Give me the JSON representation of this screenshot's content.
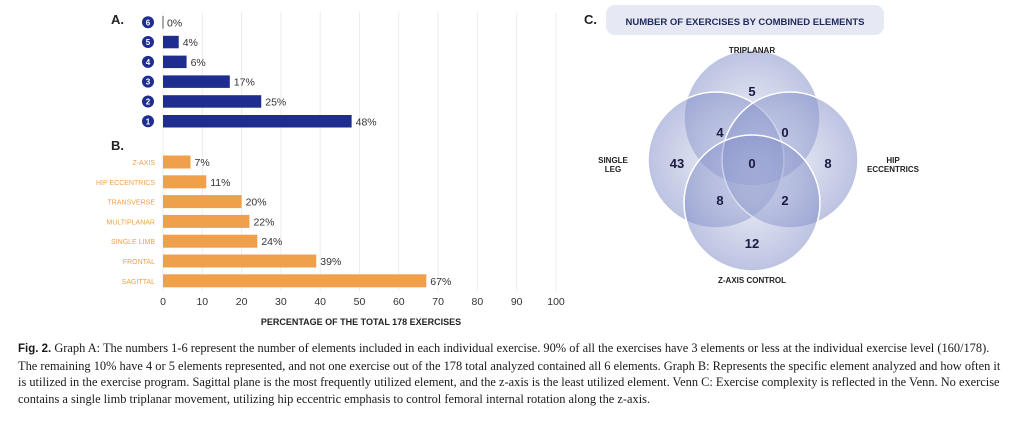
{
  "figure": {
    "labels": {
      "a": "A.",
      "b": "B.",
      "c": "C."
    },
    "xlabel": "PERCENTAGE OF THE TOTAL 178 EXERCISES"
  },
  "chart_data": [
    {
      "id": "A",
      "type": "bar",
      "orientation": "horizontal",
      "categories": [
        "6",
        "5",
        "4",
        "3",
        "2",
        "1"
      ],
      "values": [
        0,
        4,
        6,
        17,
        25,
        48
      ],
      "value_labels": [
        "0%",
        "4%",
        "6%",
        "17%",
        "25%",
        "48%"
      ],
      "color": "#1e2d8f",
      "xlim": [
        0,
        100
      ]
    },
    {
      "id": "B",
      "type": "bar",
      "orientation": "horizontal",
      "categories": [
        "Z-AXIS",
        "HIP ECCENTRICS",
        "TRANSVERSE",
        "MULTIPLANAR",
        "SINGLE LIMB",
        "FRONTAL",
        "SAGITTAL"
      ],
      "values": [
        7,
        11,
        20,
        22,
        24,
        39,
        67
      ],
      "value_labels": [
        "7%",
        "11%",
        "20%",
        "22%",
        "24%",
        "39%",
        "67%"
      ],
      "color": "#f0a04b",
      "xlim": [
        0,
        100
      ],
      "xticks": [
        0,
        10,
        20,
        30,
        40,
        50,
        60,
        70,
        80,
        90,
        100
      ],
      "xlabel": "PERCENTAGE OF THE TOTAL 178 EXERCISES"
    },
    {
      "id": "C",
      "type": "venn",
      "title": "NUMBER OF EXERCISES BY COMBINED ELEMENTS",
      "sets": [
        "TRIPLANAR",
        "SINGLE LEG",
        "HIP ECCENTRICS",
        "Z-AXIS CONTROL"
      ],
      "regions": [
        {
          "sets": [
            "TRIPLANAR"
          ],
          "value": 5
        },
        {
          "sets": [
            "SINGLE LEG"
          ],
          "value": 43
        },
        {
          "sets": [
            "HIP ECCENTRICS"
          ],
          "value": 8
        },
        {
          "sets": [
            "Z-AXIS CONTROL"
          ],
          "value": 12
        },
        {
          "sets": [
            "TRIPLANAR",
            "SINGLE LEG"
          ],
          "value": 4
        },
        {
          "sets": [
            "TRIPLANAR",
            "HIP ECCENTRICS"
          ],
          "value": 0
        },
        {
          "sets": [
            "SINGLE LEG",
            "Z-AXIS CONTROL"
          ],
          "value": 8
        },
        {
          "sets": [
            "HIP ECCENTRICS",
            "Z-AXIS CONTROL"
          ],
          "value": 2
        },
        {
          "sets": [
            "TRIPLANAR",
            "SINGLE LEG",
            "HIP ECCENTRICS",
            "Z-AXIS CONTROL"
          ],
          "value": 0
        }
      ],
      "color": "#5d6db5"
    }
  ],
  "caption": {
    "label": "Fig. 2.",
    "text": "Graph A: The numbers 1-6 represent the number of elements included in each individual exercise. 90% of all the exercises have 3 elements or less at the individual exercise level (160/178). The remaining 10% have 4 or 5 elements represented, and not one exercise out of the 178 total analyzed contained all 6 elements. Graph B: Represents the specific element analyzed and how often it is utilized in the exercise program. Sagittal plane is the most frequently utilized element, and the z-axis is the least utilized element. Venn C: Exercise complexity is reflected in the Venn. No exercise contains a single limb triplanar movement, utilizing hip eccentric emphasis to control femoral internal rotation along the z-axis."
  }
}
